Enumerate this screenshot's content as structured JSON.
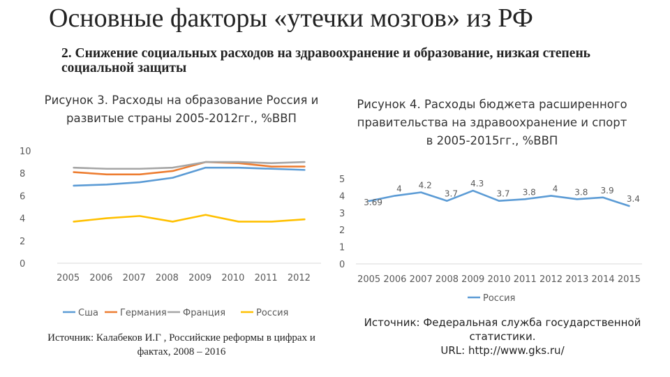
{
  "slide": {
    "title": "Основные факторы «утечки мозгов» из РФ",
    "subtitle": "2. Снижение социальных расходов на здравоохранение и образование, низкая степень социальной защиты"
  },
  "colors": {
    "usa": "#5B9BD5",
    "germany": "#ED7D31",
    "france": "#A5A5A5",
    "russia": "#FFC000",
    "russia2": "#5B9BD5"
  },
  "chart_data": [
    {
      "type": "line",
      "title": "Рисунок 3. Расходы на образование Россия и развитые страны 2005-2012гг., %ВВП",
      "categories": [
        "2005",
        "2006",
        "2007",
        "2008",
        "2009",
        "2010",
        "2011",
        "2012"
      ],
      "ylim": [
        0,
        10
      ],
      "yticks": [
        "0",
        "2",
        "4",
        "6",
        "8",
        "10"
      ],
      "grid": false,
      "legend": "bottom",
      "series": [
        {
          "name": "Сша",
          "color": "#5B9BD5",
          "values": [
            6.9,
            7.0,
            7.2,
            7.6,
            8.5,
            8.5,
            8.4,
            8.3
          ]
        },
        {
          "name": "Германия",
          "color": "#ED7D31",
          "values": [
            8.1,
            7.9,
            7.9,
            8.2,
            9.0,
            8.9,
            8.6,
            8.6
          ]
        },
        {
          "name": "Франция",
          "color": "#A5A5A5",
          "values": [
            8.5,
            8.4,
            8.4,
            8.5,
            9.0,
            9.0,
            8.9,
            9.0
          ]
        },
        {
          "name": "Россия",
          "color": "#FFC000",
          "values": [
            3.7,
            4.0,
            4.2,
            3.7,
            4.3,
            3.7,
            3.7,
            3.9
          ]
        }
      ],
      "source": "Источник: Калабеков И.Г , Российские реформы в цифрах и фактах, 2008 – 2016"
    },
    {
      "type": "line",
      "title": "Рисунок 4. Расходы бюджета расширенного правительства на здравоохранение и спорт в 2005-2015гг., %ВВП",
      "categories": [
        "2005",
        "2006",
        "2007",
        "2008",
        "2009",
        "2010",
        "2011",
        "2012",
        "2013",
        "2014",
        "2015"
      ],
      "ylim": [
        0,
        5
      ],
      "yticks": [
        "0",
        "1",
        "2",
        "3",
        "4",
        "5"
      ],
      "grid": false,
      "legend": "bottom",
      "series": [
        {
          "name": "Россия",
          "color": "#5B9BD5",
          "values": [
            3.69,
            4,
            4.2,
            3.7,
            4.3,
            3.7,
            3.8,
            4,
            3.8,
            3.9,
            3.4
          ],
          "labels": [
            "3.69",
            "4",
            "4.2",
            "3.7",
            "4.3",
            "3.7",
            "3.8",
            "4",
            "3.8",
            "3.9",
            "3.4"
          ]
        }
      ],
      "source_line1": "Источник: Федеральная служба государственной статистики.",
      "source_line2": "URL: http://www.gks.ru/"
    }
  ]
}
